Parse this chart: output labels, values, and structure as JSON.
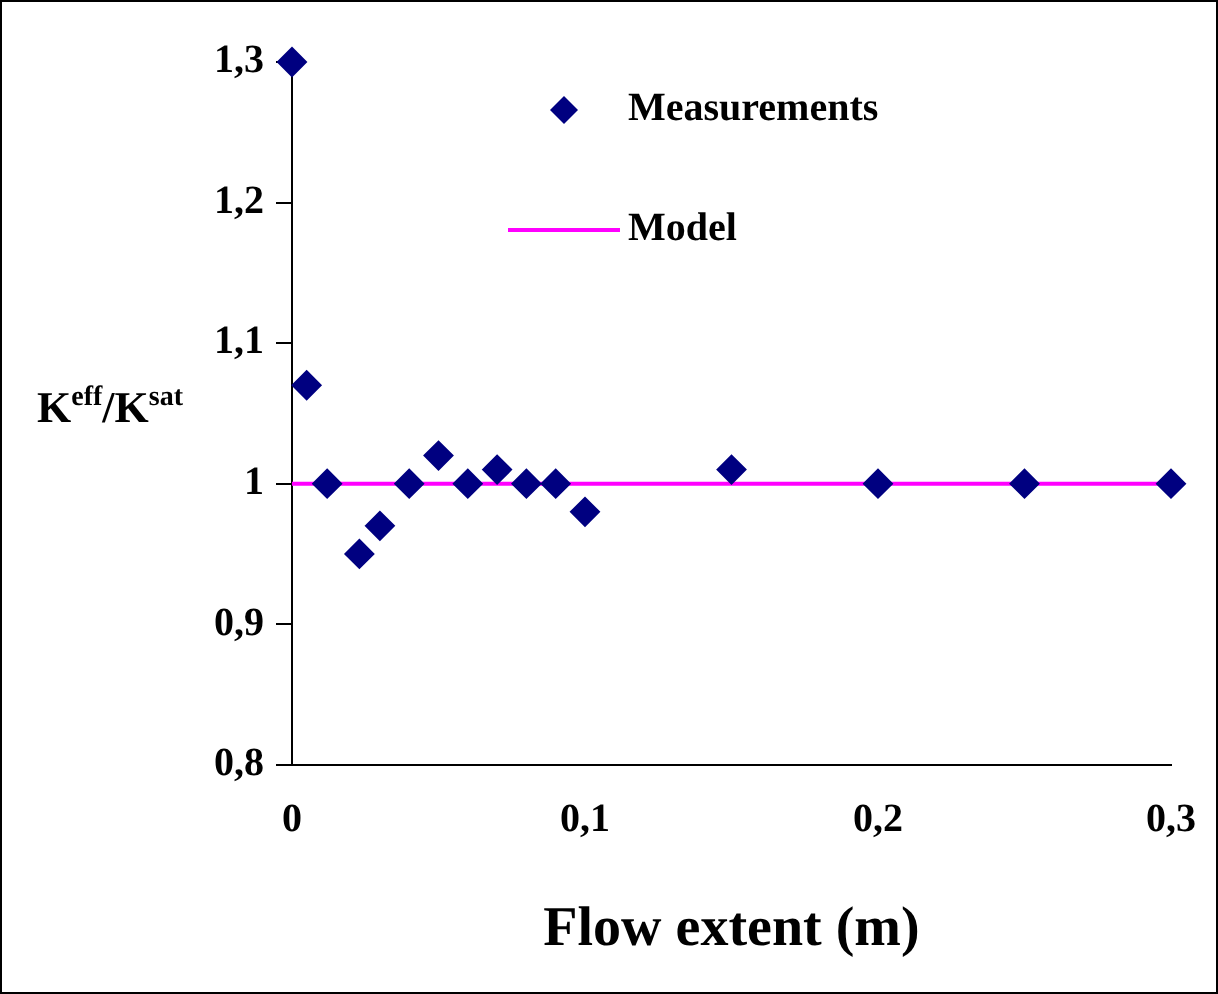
{
  "chart_data": {
    "type": "scatter",
    "xlabel": "Flow extent (m)",
    "ylabel": "K$^{eff}$/K$^{sat}$",
    "xlim": [
      0,
      0.3
    ],
    "xticks": [
      {
        "value": 0,
        "label": "0"
      },
      {
        "value": 0.1,
        "label": "0,1"
      },
      {
        "value": 0.2,
        "label": "0,2"
      },
      {
        "value": 0.3,
        "label": "0,3"
      }
    ],
    "ylim": [
      0.8,
      1.3
    ],
    "yticks": [
      {
        "value": 0.8,
        "label": "0,8"
      },
      {
        "value": 0.9,
        "label": "0,9"
      },
      {
        "value": 1,
        "label": "1"
      },
      {
        "value": 1.1,
        "label": "1,1"
      },
      {
        "value": 1.2,
        "label": "1,2"
      },
      {
        "value": 1.3,
        "label": "1,3"
      }
    ],
    "grid": false,
    "legend": "top right",
    "series": [
      {
        "name": "Measurements",
        "marker": "diamond",
        "color": "#000080",
        "x": [
          0,
          0.005,
          0.012,
          0.023,
          0.03,
          0.04,
          0.05,
          0.06,
          0.07,
          0.08,
          0.09,
          0.1,
          0.15,
          0.2,
          0.25,
          0.3
        ],
        "values": [
          1.3,
          1.07,
          1,
          0.95,
          0.97,
          1,
          1.02,
          1,
          1.01,
          1,
          1,
          0.98,
          1.01,
          1,
          1,
          1
        ]
      },
      {
        "name": "Model",
        "type": "line",
        "color": "#ff00ff",
        "line_style": "solid",
        "x": [
          0,
          0.3
        ],
        "values": [
          1,
          1
        ]
      }
    ]
  }
}
